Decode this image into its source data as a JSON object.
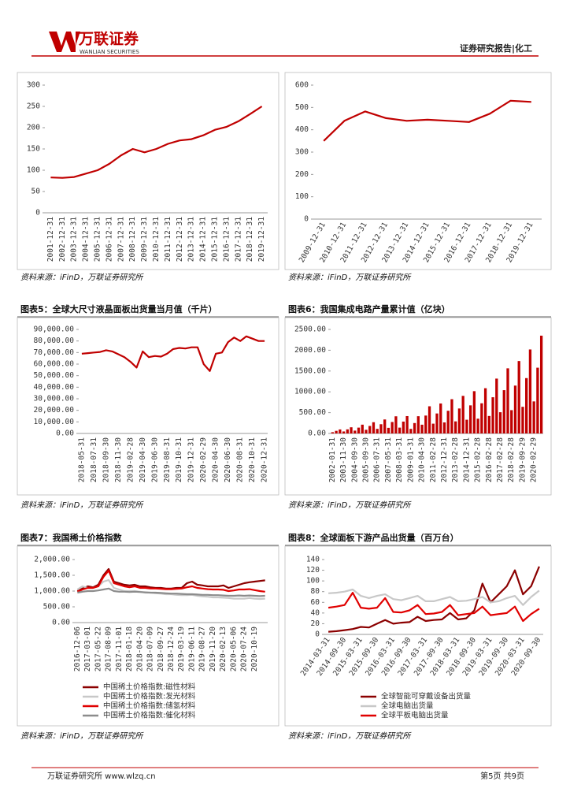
{
  "header": {
    "logo_cn": "万联证券",
    "logo_en": "WANLIAN SECURITIES",
    "report_type": "证券研究报告|化工"
  },
  "footer": {
    "left": "万联证券研究所 www.wlzq.cn",
    "right": "第5页 共9页"
  },
  "chart_data": [
    {
      "type": "line",
      "color": "#c00000",
      "source": "资料来源：iFinD，万联证券研究所",
      "categories": [
        "2001-12-31",
        "2002-12-31",
        "2003-12-31",
        "2004-12-31",
        "2005-12-31",
        "2006-12-31",
        "2007-12-31",
        "2008-12-31",
        "2009-12-31",
        "2010-12-31",
        "2011-12-31",
        "2012-12-31",
        "2013-12-31",
        "2014-12-31",
        "2015-12-31",
        "2016-12-31",
        "2017-12-31",
        "2018-12-31",
        "2019-12-31"
      ],
      "series": [
        {
          "color": "#c00000",
          "values": [
            83,
            82,
            84,
            92,
            100,
            115,
            135,
            150,
            142,
            150,
            162,
            170,
            173,
            182,
            195,
            202,
            215,
            232,
            250
          ]
        }
      ],
      "ylim": [
        0,
        300
      ],
      "yticks": [
        0,
        50,
        100,
        150,
        200,
        250,
        300
      ]
    },
    {
      "type": "line",
      "source": "资料来源：iFinD，万联证券研究所",
      "categories": [
        "2009-12-31",
        "2010-12-31",
        "2011-12-31",
        "2012-12-31",
        "2013-12-31",
        "2014-12-31",
        "2015-12-31",
        "2016-12-31",
        "2017-12-31",
        "2018-12-31",
        "2019-12-31"
      ],
      "series": [
        {
          "color": "#c00000",
          "values": [
            350,
            440,
            482,
            452,
            440,
            445,
            440,
            435,
            472,
            530,
            525
          ]
        }
      ],
      "ylim": [
        0,
        600
      ],
      "yticks": [
        0,
        100,
        200,
        300,
        400,
        500,
        600
      ]
    },
    {
      "type": "line",
      "title": "图表5：全球大尺寸液晶面板出货量当月值（千片）",
      "source": "资料来源：iFinD，万联证券研究所",
      "categories": [
        "2018-05-31",
        null,
        "2018-07-31",
        null,
        "2018-09-30",
        null,
        "2018-11-30",
        null,
        "2019-02-28",
        null,
        "2019-04-30",
        null,
        "2019-06-30",
        null,
        "2019-08-31",
        null,
        "2019-10-31",
        null,
        "2019-12-31",
        null,
        "2020-02-29",
        null,
        "2020-04-30",
        null,
        "2020-06-30",
        null,
        "2020-08-31",
        null,
        "2020-10-31",
        null,
        "2020-12-31"
      ],
      "series": [
        {
          "color": "#c00000",
          "values": [
            69000,
            69500,
            70000,
            70500,
            72000,
            71000,
            68500,
            66000,
            62000,
            57000,
            71000,
            66000,
            67000,
            66500,
            69000,
            73000,
            74000,
            73500,
            74500,
            74500,
            60000,
            54000,
            69000,
            70000,
            79000,
            83000,
            80000,
            84000,
            82000,
            80000,
            80000
          ]
        }
      ],
      "ylim": [
        0,
        90000
      ],
      "yticks": [
        {
          "value": 0,
          "label": "0.00"
        },
        {
          "value": 10000,
          "label": "10,000.00"
        },
        {
          "value": 20000,
          "label": "20,000.00"
        },
        {
          "value": 30000,
          "label": "30,000.00"
        },
        {
          "value": 40000,
          "label": "40,000.00"
        },
        {
          "value": 50000,
          "label": "50,000.00"
        },
        {
          "value": 60000,
          "label": "60,000.00"
        },
        {
          "value": 70000,
          "label": "70,000.00"
        },
        {
          "value": 80000,
          "label": "80,000.00"
        },
        {
          "value": 90000,
          "label": "90,000.00"
        }
      ]
    },
    {
      "type": "bar",
      "title": "图表6：我国集成电路产量累计值（亿块）",
      "source": "资料来源：iFinD，万联证券研究所",
      "color": "#c00000",
      "categories": [
        "2002-01-31",
        null,
        null,
        "2003-11-30",
        null,
        null,
        "2004-09-30",
        null,
        null,
        "2005-09-30",
        null,
        null,
        "2006-07-31",
        null,
        null,
        "2007-05-31",
        null,
        null,
        "2008-03-31",
        null,
        null,
        "2009-01-31",
        null,
        null,
        "2010-04-30",
        null,
        null,
        "2011-02-28",
        null,
        null,
        "2012-12-31",
        null,
        null,
        "2013-02-28",
        null,
        null,
        "2014-12-31",
        null,
        null,
        "2015-02-28",
        null,
        null,
        "2016-02-28",
        null,
        null,
        "2017-02-28",
        null,
        null,
        "2018-02-28",
        null,
        null,
        "2019-09-29",
        null,
        null,
        "2020-02-29",
        null,
        null
      ],
      "values": [
        30,
        63,
        96,
        48,
        98,
        148,
        68,
        140,
        211,
        88,
        180,
        270,
        110,
        222,
        336,
        135,
        275,
        412,
        140,
        285,
        417,
        110,
        250,
        414,
        210,
        430,
        653,
        235,
        480,
        720,
        265,
        545,
        823,
        290,
        600,
        903,
        330,
        675,
        1016,
        355,
        725,
        1087,
        420,
        870,
        1318,
        510,
        1040,
        1565,
        560,
        1150,
        1740,
        640,
        1330,
        2018,
        770,
        1580,
        2350
      ],
      "ylim": [
        0,
        2500
      ],
      "yticks": [
        {
          "value": 0,
          "label": "0.00"
        },
        {
          "value": 500,
          "label": "500.00"
        },
        {
          "value": 1000,
          "label": "1000.00"
        },
        {
          "value": 1500,
          "label": "1500.00"
        },
        {
          "value": 2000,
          "label": "2000.00"
        },
        {
          "value": 2500,
          "label": "2500.00"
        }
      ]
    },
    {
      "type": "line",
      "title": "图表7：我国稀土价格指数",
      "source": "资料来源：iFinD，万联证券研究所",
      "categories": [
        "2016-12-06",
        null,
        "2017-03-01",
        null,
        "2017-05-22",
        null,
        "2017-08-09",
        null,
        "2017-11-01",
        null,
        "2018-01-18",
        null,
        "2018-04-20",
        null,
        "2018-07-09",
        null,
        "2018-09-27",
        null,
        "2018-12-24",
        null,
        "2019-03-19",
        null,
        "2019-06-11",
        null,
        "2019-08-27",
        null,
        "2019-11-20",
        null,
        "2020-02-13",
        null,
        "2020-05-06",
        null,
        "2020-07-24",
        null,
        "2020-10-19",
        null,
        null
      ],
      "series": [
        {
          "name": "中国稀土价格指数:磁性材料",
          "color": "#8b0000",
          "values": [
            1000,
            1080,
            1150,
            1120,
            1200,
            1500,
            1700,
            1300,
            1250,
            1200,
            1180,
            1200,
            1150,
            1150,
            1120,
            1100,
            1100,
            1080,
            1080,
            1100,
            1100,
            1250,
            1300,
            1200,
            1180,
            1150,
            1150,
            1150,
            1180,
            1100,
            1150,
            1200,
            1250,
            1280,
            1300,
            1320,
            1340
          ]
        },
        {
          "name": "中国稀土价格指数:发光材料",
          "color": "#c8c8c8",
          "values": [
            1050,
            1150,
            1100,
            1100,
            1150,
            1300,
            1350,
            1100,
            1050,
            1000,
            1000,
            1000,
            980,
            950,
            950,
            930,
            920,
            900,
            900,
            880,
            870,
            870,
            880,
            850,
            830,
            820,
            800,
            800,
            790,
            780,
            760,
            760,
            760,
            780,
            760,
            750,
            760
          ]
        },
        {
          "name": "中国稀土价格指数:储氢材料",
          "color": "#e00000",
          "values": [
            980,
            1050,
            1100,
            1100,
            1150,
            1450,
            1650,
            1250,
            1200,
            1150,
            1120,
            1150,
            1100,
            1100,
            1080,
            1080,
            1070,
            1060,
            1060,
            1070,
            1080,
            1120,
            1150,
            1100,
            1080,
            1060,
            1050,
            1050,
            1040,
            1000,
            1020,
            1050,
            1050,
            1060,
            1030,
            1000,
            980
          ]
        },
        {
          "name": "中国稀土价格指数:催化材料",
          "color": "#8c8c8c",
          "values": [
            950,
            980,
            1000,
            1000,
            1020,
            1050,
            1080,
            1000,
            980,
            980,
            970,
            980,
            970,
            960,
            950,
            950,
            940,
            930,
            920,
            920,
            910,
            900,
            900,
            890,
            880,
            880,
            870,
            870,
            860,
            850,
            850,
            860,
            850,
            860,
            850,
            840,
            850
          ]
        }
      ],
      "ylim": [
        0,
        2000
      ],
      "yticks": [
        {
          "value": 0,
          "label": "0.00"
        },
        {
          "value": 500,
          "label": "500.00"
        },
        {
          "value": 1000,
          "label": "1,000.00"
        },
        {
          "value": 1500,
          "label": "1,500.00"
        },
        {
          "value": 2000,
          "label": "2,000.00"
        }
      ]
    },
    {
      "type": "line",
      "title": "图表8：全球面板下游产品出货量（百万台）",
      "source": "资料来源：iFinD，万联证券研究所",
      "categories": [
        "2014-03-31",
        null,
        "2014-09-30",
        null,
        "2015-03-31",
        null,
        "2015-09-30",
        null,
        "2016-03-31",
        null,
        "2016-09-30",
        null,
        "2017-03-31",
        null,
        "2017-09-30",
        null,
        "2018-03-31",
        null,
        "2018-09-30",
        null,
        "2019-03-31",
        null,
        "2019-09-30",
        null,
        "2020-03-31",
        null,
        "2020-09-30"
      ],
      "series": [
        {
          "name": "全球智能可穿戴设备出货量",
          "color": "#8b0000",
          "values": [
            5,
            6,
            8,
            10,
            14,
            13,
            20,
            27,
            20,
            22,
            23,
            33,
            25,
            27,
            28,
            40,
            28,
            30,
            45,
            95,
            60,
            75,
            90,
            120,
            75,
            90,
            127
          ]
        },
        {
          "name": "全球电脑出货量",
          "color": "#c8c8c8",
          "values": [
            77,
            78,
            80,
            84,
            72,
            68,
            72,
            75,
            66,
            64,
            68,
            72,
            62,
            62,
            66,
            70,
            62,
            63,
            66,
            70,
            60,
            62,
            68,
            72,
            55,
            70,
            82
          ]
        },
        {
          "name": "全球平板电脑出货量",
          "color": "#e00000",
          "values": [
            50,
            52,
            55,
            78,
            50,
            48,
            50,
            68,
            42,
            41,
            45,
            55,
            38,
            39,
            42,
            55,
            36,
            38,
            40,
            52,
            36,
            38,
            40,
            52,
            25,
            38,
            48
          ]
        }
      ],
      "ylim": [
        0,
        140
      ],
      "yticks": [
        0,
        20,
        40,
        60,
        80,
        100,
        120,
        140
      ]
    }
  ]
}
